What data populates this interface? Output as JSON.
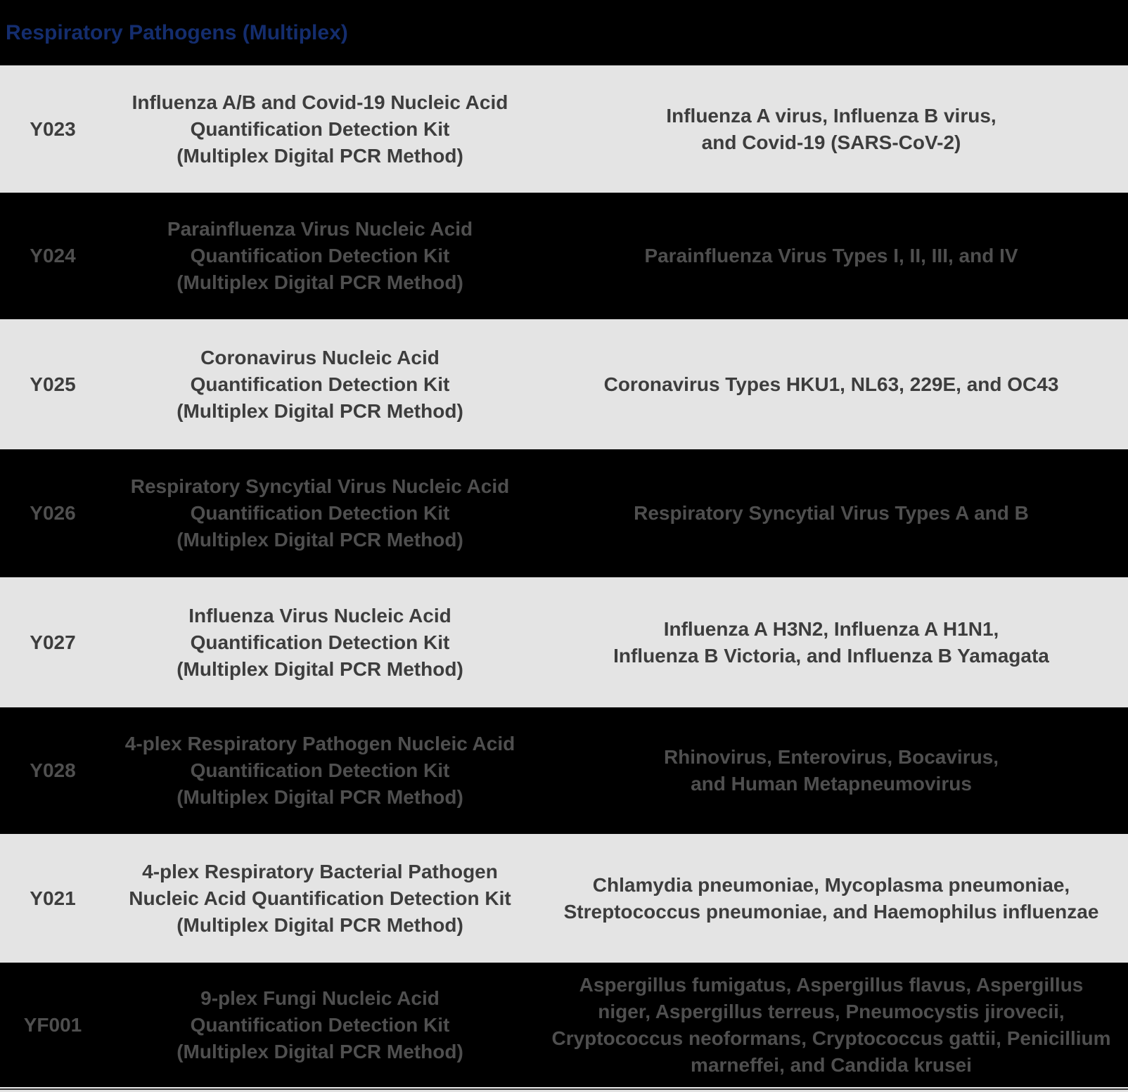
{
  "header": {
    "title": "Respiratory Pathogens (Multiplex)"
  },
  "colors": {
    "header_bg": "#000000",
    "title_text": "#142d6e",
    "row_light_bg": "#e4e4e4",
    "row_light_text": "#3d3d3d",
    "row_dark_bg": "#000000",
    "row_dark_text": "#4f4f4f"
  },
  "table": {
    "columns": [
      "code",
      "product_name",
      "detection_targets"
    ],
    "rows": [
      {
        "code": "Y023",
        "name": "Influenza A/B and Covid-19 Nucleic Acid\nQuantification Detection Kit\n(Multiplex Digital PCR Method)",
        "targets": "Influenza A virus, Influenza B virus,\nand Covid-19 (SARS-CoV-2)"
      },
      {
        "code": "Y024",
        "name": "Parainfluenza Virus Nucleic Acid\nQuantification Detection Kit\n(Multiplex Digital PCR Method)",
        "targets": "Parainfluenza Virus Types I, II, III, and IV"
      },
      {
        "code": "Y025",
        "name": "Coronavirus Nucleic Acid\nQuantification Detection Kit\n(Multiplex Digital PCR Method)",
        "targets": "Coronavirus Types HKU1, NL63, 229E, and OC43"
      },
      {
        "code": "Y026",
        "name": "Respiratory Syncytial Virus Nucleic Acid\nQuantification Detection Kit\n(Multiplex Digital PCR Method)",
        "targets": "Respiratory Syncytial Virus Types A and B"
      },
      {
        "code": "Y027",
        "name": "Influenza Virus Nucleic Acid\nQuantification Detection Kit\n(Multiplex Digital PCR Method)",
        "targets": "Influenza A H3N2, Influenza A H1N1,\nInfluenza B Victoria, and Influenza B Yamagata"
      },
      {
        "code": "Y028",
        "name": "4-plex Respiratory Pathogen Nucleic Acid\nQuantification Detection Kit\n(Multiplex Digital PCR Method)",
        "targets": "Rhinovirus, Enterovirus, Bocavirus,\nand Human Metapneumovirus"
      },
      {
        "code": "Y021",
        "name": "4-plex Respiratory Bacterial Pathogen\nNucleic Acid Quantification Detection Kit\n(Multiplex Digital PCR Method)",
        "targets": "Chlamydia pneumoniae, Mycoplasma pneumoniae,\nStreptococcus pneumoniae, and Haemophilus influenzae"
      },
      {
        "code": "YF001",
        "name": "9-plex Fungi Nucleic Acid\nQuantification Detection Kit\n(Multiplex Digital PCR Method)",
        "targets": "Aspergillus fumigatus, Aspergillus flavus, Aspergillus\nniger, Aspergillus terreus, Pneumocystis jirovecii,\nCryptococcus neoformans, Cryptococcus gattii, Penicillium\nmarneffei, and Candida krusei"
      }
    ]
  }
}
